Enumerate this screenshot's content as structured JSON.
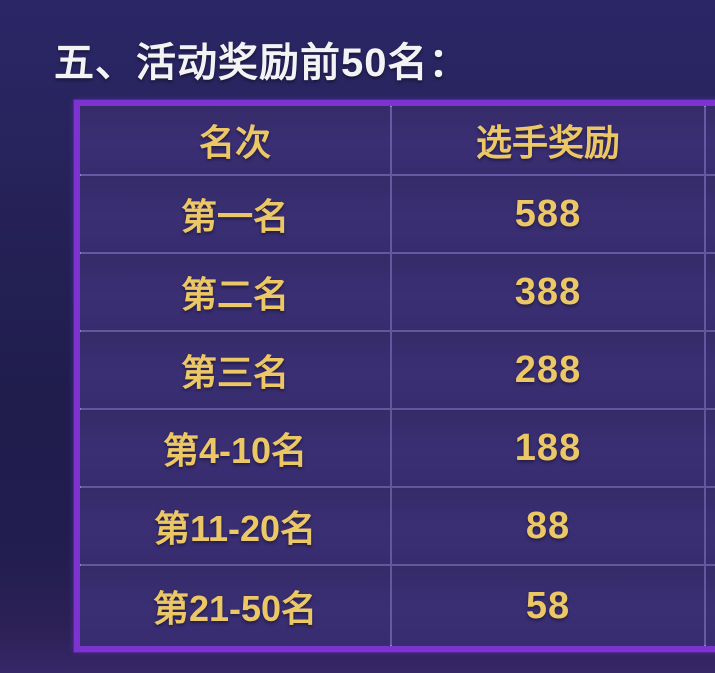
{
  "title": "五、活动奖励前50名：",
  "table": {
    "headers": [
      "名次",
      "选手奖励"
    ],
    "rows": [
      {
        "rank": "第一名",
        "reward": "588"
      },
      {
        "rank": "第二名",
        "reward": "388"
      },
      {
        "rank": "第三名",
        "reward": "288"
      },
      {
        "rank": "第4-10名",
        "reward": "188"
      },
      {
        "rank": "第11-20名",
        "reward": "88"
      },
      {
        "rank": "第21-50名",
        "reward": "58"
      }
    ]
  },
  "colors": {
    "background_top": "#2b2767",
    "background_bottom": "#362767",
    "table_frame": "#7c33cf",
    "grid_line": "#a48fec",
    "cell_background": "#3a2f74",
    "gold_text": "#ecc766",
    "title_text": "#f3f3f6"
  }
}
